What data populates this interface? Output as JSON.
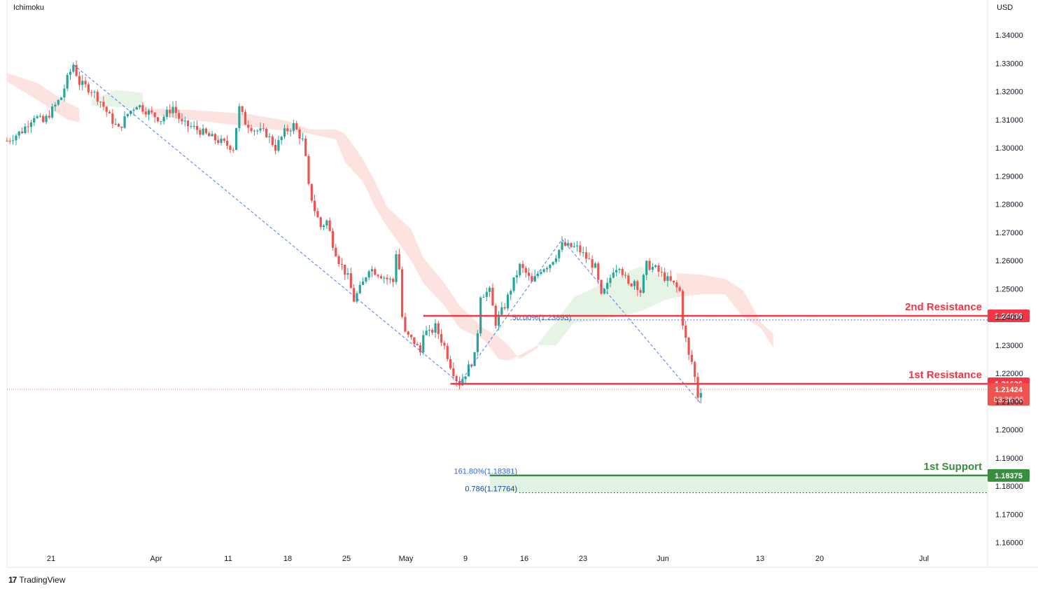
{
  "indicator_label": "Ichimoku",
  "currency": "USD",
  "brand": {
    "logo": "17",
    "name": "TradingView"
  },
  "colors": {
    "bull": "#26a69a",
    "bear": "#ef5350",
    "resistance": "#f23645",
    "support": "#388e3c",
    "fib": "#2962ff",
    "cloud_bear": "#fde0dc",
    "cloud_bull": "#e3f3e3"
  },
  "chart_data": {
    "type": "candlestick",
    "y_axis": {
      "ticks": [
        "1.34000",
        "1.33000",
        "1.32000",
        "1.31000",
        "1.30000",
        "1.29000",
        "1.28000",
        "1.27000",
        "1.26000",
        "1.25000",
        "1.24000",
        "1.23000",
        "1.22000",
        "1.21000",
        "1.20000",
        "1.19000",
        "1.18000",
        "1.17000",
        "1.16000"
      ],
      "range": [
        1.155,
        1.345
      ]
    },
    "x_axis": {
      "ticks": [
        "21",
        "Apr",
        "11",
        "18",
        "25",
        "May",
        "9",
        "16",
        "23",
        "Jun",
        "13",
        "20",
        "Jul"
      ]
    },
    "price_path": [
      [
        0,
        1.3025
      ],
      [
        5,
        1.306
      ],
      [
        9,
        1.3115
      ],
      [
        12,
        1.309
      ],
      [
        15,
        1.3135
      ],
      [
        18,
        1.318
      ],
      [
        20,
        1.3245
      ],
      [
        22,
        1.3295
      ],
      [
        24,
        1.323
      ],
      [
        28,
        1.3205
      ],
      [
        31,
        1.3165
      ],
      [
        34,
        1.311
      ],
      [
        37,
        1.3065
      ],
      [
        40,
        1.312
      ],
      [
        43,
        1.3155
      ],
      [
        47,
        1.3125
      ],
      [
        51,
        1.31
      ],
      [
        55,
        1.3145
      ],
      [
        58,
        1.3085
      ],
      [
        61,
        1.3075
      ],
      [
        64,
        1.306
      ],
      [
        67,
        1.304
      ],
      [
        70,
        1.3025
      ],
      [
        73,
        1.301
      ],
      [
        75,
        1.3
      ],
      [
        76,
        1.3075
      ],
      [
        77,
        1.314
      ],
      [
        79,
        1.309
      ],
      [
        82,
        1.3065
      ],
      [
        86,
        1.305
      ],
      [
        89,
        1.3
      ],
      [
        92,
        1.3055
      ],
      [
        95,
        1.308
      ],
      [
        98,
        1.3025
      ],
      [
        99,
        1.296
      ],
      [
        100,
        1.286
      ],
      [
        102,
        1.278
      ],
      [
        104,
        1.272
      ],
      [
        106,
        1.274
      ],
      [
        108,
        1.266
      ],
      [
        110,
        1.26
      ],
      [
        113,
        1.254
      ],
      [
        115,
        1.246
      ],
      [
        118,
        1.252
      ],
      [
        120,
        1.2575
      ],
      [
        123,
        1.2555
      ],
      [
        126,
        1.2535
      ],
      [
        128,
        1.2525
      ],
      [
        129,
        1.263
      ],
      [
        130,
        1.257
      ],
      [
        131,
        1.24
      ],
      [
        132,
        1.234
      ],
      [
        135,
        1.231
      ],
      [
        137,
        1.2275
      ],
      [
        138,
        1.235
      ],
      [
        140,
        1.234
      ],
      [
        142,
        1.2365
      ],
      [
        145,
        1.2295
      ],
      [
        147,
        1.223
      ],
      [
        149,
        1.218
      ],
      [
        150,
        1.2165
      ],
      [
        152,
        1.22
      ],
      [
        155,
        1.226
      ],
      [
        156,
        1.235
      ],
      [
        157,
        1.248
      ],
      [
        160,
        1.249
      ],
      [
        162,
        1.238
      ],
      [
        163,
        1.24
      ],
      [
        165,
        1.244
      ],
      [
        167,
        1.25
      ],
      [
        170,
        1.258
      ],
      [
        172,
        1.2555
      ],
      [
        174,
        1.252
      ],
      [
        177,
        1.257
      ],
      [
        180,
        1.259
      ],
      [
        182,
        1.262
      ],
      [
        184,
        1.2655
      ],
      [
        186,
        1.265
      ],
      [
        189,
        1.2645
      ],
      [
        192,
        1.261
      ],
      [
        195,
        1.2575
      ],
      [
        197,
        1.247
      ],
      [
        199,
        1.251
      ],
      [
        201,
        1.257
      ],
      [
        203,
        1.2585
      ],
      [
        206,
        1.251
      ],
      [
        208,
        1.253
      ],
      [
        210,
        1.249
      ],
      [
        212,
        1.2585
      ],
      [
        215,
        1.257
      ],
      [
        218,
        1.254
      ],
      [
        221,
        1.2515
      ],
      [
        223,
        1.249
      ],
      [
        224,
        1.238
      ],
      [
        225,
        1.232
      ],
      [
        226,
        1.226
      ],
      [
        227,
        1.224
      ],
      [
        228,
        1.2185
      ],
      [
        229,
        1.212
      ],
      [
        230,
        1.2142
      ]
    ],
    "cloud": [
      {
        "type": "bear",
        "points": [
          [
            0,
            1.3265,
            1.3235
          ],
          [
            10,
            1.323,
            1.317
          ],
          [
            20,
            1.316,
            1.31
          ],
          [
            24,
            1.314,
            1.309
          ]
        ]
      },
      {
        "type": "bull",
        "points": [
          [
            28,
            1.317,
            1.315
          ],
          [
            36,
            1.3205,
            1.3145
          ],
          [
            45,
            1.3195,
            1.314
          ]
        ]
      },
      {
        "type": "bear",
        "points": [
          [
            45,
            1.314,
            1.312
          ],
          [
            60,
            1.3135,
            1.31
          ],
          [
            80,
            1.312,
            1.3075
          ],
          [
            93,
            1.3095,
            1.306
          ],
          [
            100,
            1.3065,
            1.305
          ],
          [
            109,
            1.3065,
            1.303
          ],
          [
            112,
            1.305,
            1.295
          ],
          [
            118,
            1.296,
            1.288
          ],
          [
            122,
            1.288,
            1.279
          ],
          [
            126,
            1.279,
            1.272
          ],
          [
            134,
            1.271,
            1.26
          ],
          [
            138,
            1.261,
            1.252
          ],
          [
            145,
            1.252,
            1.244
          ],
          [
            150,
            1.244,
            1.236
          ],
          [
            158,
            1.236,
            1.232
          ],
          [
            163,
            1.233,
            1.225
          ],
          [
            166,
            1.23,
            1.2245
          ],
          [
            170,
            1.225,
            1.2265
          ],
          [
            176,
            1.229,
            1.23
          ]
        ]
      },
      {
        "type": "bull",
        "points": [
          [
            176,
            1.2305,
            1.23
          ],
          [
            182,
            1.2385,
            1.23
          ],
          [
            188,
            1.247,
            1.238
          ],
          [
            194,
            1.25,
            1.2385
          ],
          [
            202,
            1.254,
            1.24
          ],
          [
            210,
            1.258,
            1.242
          ],
          [
            218,
            1.254,
            1.246
          ],
          [
            222,
            1.252,
            1.247
          ]
        ]
      },
      {
        "type": "bear",
        "points": [
          [
            222,
            1.2555,
            1.247
          ],
          [
            230,
            1.255,
            1.248
          ],
          [
            238,
            1.2535,
            1.248
          ],
          [
            244,
            1.2495,
            1.24
          ],
          [
            250,
            1.238,
            1.236
          ],
          [
            254,
            1.234,
            1.229
          ]
        ]
      }
    ],
    "trendlines": [
      {
        "from": [
          22,
          1.3295
        ],
        "to": [
          150,
          1.2165
        ],
        "style": "dashed"
      },
      {
        "from": [
          150,
          1.2165
        ],
        "to": [
          184,
          1.2675
        ],
        "style": "dashed"
      },
      {
        "from": [
          184,
          1.2675
        ],
        "to": [
          230,
          1.2092
        ],
        "style": "dashed"
      }
    ],
    "levels": [
      {
        "name": "2nd Resistance",
        "value_label": "1.24036",
        "value": 1.24036,
        "color": "#f23645",
        "x_start": 138
      },
      {
        "name": "1st Resistance",
        "value_label": "1.21626",
        "value": 1.21626,
        "color": "#f23645",
        "x_start": 147
      },
      {
        "name": "1st Support",
        "value_label": "1.18375",
        "value": 1.18375,
        "color": "#388e3c",
        "x_start": 160
      }
    ],
    "fib_labels": [
      {
        "text": "50.00%(1.23893)",
        "value": 1.23893,
        "x_start": 167
      },
      {
        "text": "161.80%(1.18381)",
        "value": 1.18381,
        "x_start": 160
      },
      {
        "text": "0.786(1.17764)",
        "value": 1.17764,
        "x_start": 153
      }
    ],
    "support_zone": {
      "from": 1.18375,
      "to": 1.17764
    },
    "current_price": {
      "value": 1.21424,
      "label": "1.21424",
      "countdown": "03:36:06"
    }
  }
}
